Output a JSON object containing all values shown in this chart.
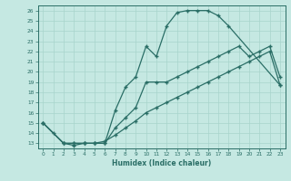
{
  "bg_color": "#c5e8e2",
  "grid_color": "#a8d4cc",
  "line_color": "#2a6e66",
  "xlabel": "Humidex (Indice chaleur)",
  "curve1_x": [
    0,
    1,
    2,
    3,
    4,
    5,
    6,
    7,
    8,
    9,
    10,
    11,
    12,
    13,
    14,
    15,
    16,
    17,
    18,
    23
  ],
  "curve1_y": [
    15,
    14,
    13,
    12.8,
    13,
    13,
    13,
    16.2,
    18.5,
    19.5,
    22.5,
    21.5,
    24.5,
    25.8,
    26.0,
    26.0,
    26.0,
    25.5,
    24.5,
    18.7
  ],
  "curve2_x": [
    0,
    2,
    3,
    4,
    5,
    6,
    7,
    8,
    9,
    10,
    11,
    12,
    13,
    14,
    15,
    16,
    17,
    18,
    19,
    20,
    21,
    22,
    23
  ],
  "curve2_y": [
    15,
    13,
    13,
    13,
    13,
    13,
    14.5,
    15.5,
    16.5,
    19.0,
    19.0,
    19.0,
    19.5,
    20.0,
    20.5,
    21.0,
    21.5,
    22.0,
    22.5,
    21.5,
    22.0,
    22.5,
    19.5
  ],
  "curve3_x": [
    0,
    2,
    3,
    4,
    5,
    6,
    7,
    8,
    9,
    10,
    11,
    12,
    13,
    14,
    15,
    16,
    17,
    18,
    19,
    20,
    21,
    22,
    23
  ],
  "curve3_y": [
    15,
    13,
    13,
    13,
    13,
    13.2,
    13.8,
    14.5,
    15.2,
    16.0,
    16.5,
    17.0,
    17.5,
    18.0,
    18.5,
    19.0,
    19.5,
    20.0,
    20.5,
    21.0,
    21.5,
    22.0,
    18.7
  ]
}
